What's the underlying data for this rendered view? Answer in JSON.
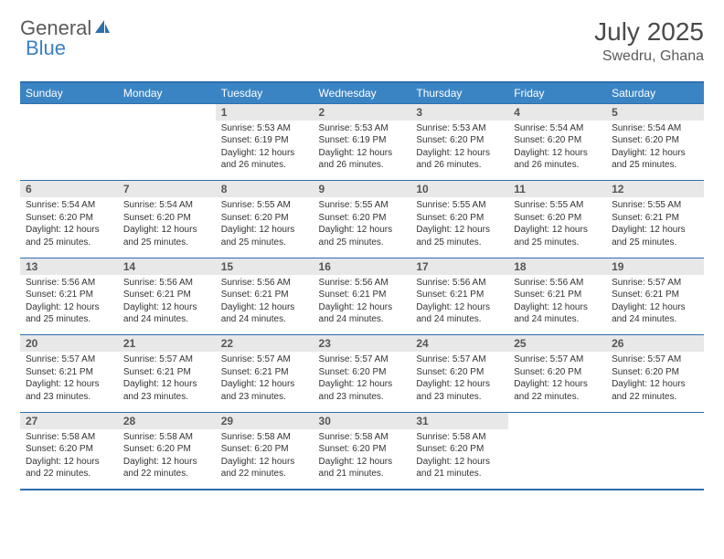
{
  "brand": {
    "word1": "General",
    "word2": "Blue"
  },
  "title": "July 2025",
  "location": "Swedru, Ghana",
  "colors": {
    "header_bg": "#3b84c4",
    "border": "#2e6fad",
    "daynum_bg": "#e8e8e8",
    "text": "#333333",
    "title_text": "#4a4a4a",
    "brand_gray": "#5a5a5a",
    "brand_blue": "#3b7fc4"
  },
  "daysOfWeek": [
    "Sunday",
    "Monday",
    "Tuesday",
    "Wednesday",
    "Thursday",
    "Friday",
    "Saturday"
  ],
  "weeks": [
    [
      {
        "n": "",
        "sr": "",
        "ss": "",
        "dl": ""
      },
      {
        "n": "",
        "sr": "",
        "ss": "",
        "dl": ""
      },
      {
        "n": "1",
        "sr": "Sunrise: 5:53 AM",
        "ss": "Sunset: 6:19 PM",
        "dl": "Daylight: 12 hours and 26 minutes."
      },
      {
        "n": "2",
        "sr": "Sunrise: 5:53 AM",
        "ss": "Sunset: 6:19 PM",
        "dl": "Daylight: 12 hours and 26 minutes."
      },
      {
        "n": "3",
        "sr": "Sunrise: 5:53 AM",
        "ss": "Sunset: 6:20 PM",
        "dl": "Daylight: 12 hours and 26 minutes."
      },
      {
        "n": "4",
        "sr": "Sunrise: 5:54 AM",
        "ss": "Sunset: 6:20 PM",
        "dl": "Daylight: 12 hours and 26 minutes."
      },
      {
        "n": "5",
        "sr": "Sunrise: 5:54 AM",
        "ss": "Sunset: 6:20 PM",
        "dl": "Daylight: 12 hours and 25 minutes."
      }
    ],
    [
      {
        "n": "6",
        "sr": "Sunrise: 5:54 AM",
        "ss": "Sunset: 6:20 PM",
        "dl": "Daylight: 12 hours and 25 minutes."
      },
      {
        "n": "7",
        "sr": "Sunrise: 5:54 AM",
        "ss": "Sunset: 6:20 PM",
        "dl": "Daylight: 12 hours and 25 minutes."
      },
      {
        "n": "8",
        "sr": "Sunrise: 5:55 AM",
        "ss": "Sunset: 6:20 PM",
        "dl": "Daylight: 12 hours and 25 minutes."
      },
      {
        "n": "9",
        "sr": "Sunrise: 5:55 AM",
        "ss": "Sunset: 6:20 PM",
        "dl": "Daylight: 12 hours and 25 minutes."
      },
      {
        "n": "10",
        "sr": "Sunrise: 5:55 AM",
        "ss": "Sunset: 6:20 PM",
        "dl": "Daylight: 12 hours and 25 minutes."
      },
      {
        "n": "11",
        "sr": "Sunrise: 5:55 AM",
        "ss": "Sunset: 6:20 PM",
        "dl": "Daylight: 12 hours and 25 minutes."
      },
      {
        "n": "12",
        "sr": "Sunrise: 5:55 AM",
        "ss": "Sunset: 6:21 PM",
        "dl": "Daylight: 12 hours and 25 minutes."
      }
    ],
    [
      {
        "n": "13",
        "sr": "Sunrise: 5:56 AM",
        "ss": "Sunset: 6:21 PM",
        "dl": "Daylight: 12 hours and 25 minutes."
      },
      {
        "n": "14",
        "sr": "Sunrise: 5:56 AM",
        "ss": "Sunset: 6:21 PM",
        "dl": "Daylight: 12 hours and 24 minutes."
      },
      {
        "n": "15",
        "sr": "Sunrise: 5:56 AM",
        "ss": "Sunset: 6:21 PM",
        "dl": "Daylight: 12 hours and 24 minutes."
      },
      {
        "n": "16",
        "sr": "Sunrise: 5:56 AM",
        "ss": "Sunset: 6:21 PM",
        "dl": "Daylight: 12 hours and 24 minutes."
      },
      {
        "n": "17",
        "sr": "Sunrise: 5:56 AM",
        "ss": "Sunset: 6:21 PM",
        "dl": "Daylight: 12 hours and 24 minutes."
      },
      {
        "n": "18",
        "sr": "Sunrise: 5:56 AM",
        "ss": "Sunset: 6:21 PM",
        "dl": "Daylight: 12 hours and 24 minutes."
      },
      {
        "n": "19",
        "sr": "Sunrise: 5:57 AM",
        "ss": "Sunset: 6:21 PM",
        "dl": "Daylight: 12 hours and 24 minutes."
      }
    ],
    [
      {
        "n": "20",
        "sr": "Sunrise: 5:57 AM",
        "ss": "Sunset: 6:21 PM",
        "dl": "Daylight: 12 hours and 23 minutes."
      },
      {
        "n": "21",
        "sr": "Sunrise: 5:57 AM",
        "ss": "Sunset: 6:21 PM",
        "dl": "Daylight: 12 hours and 23 minutes."
      },
      {
        "n": "22",
        "sr": "Sunrise: 5:57 AM",
        "ss": "Sunset: 6:21 PM",
        "dl": "Daylight: 12 hours and 23 minutes."
      },
      {
        "n": "23",
        "sr": "Sunrise: 5:57 AM",
        "ss": "Sunset: 6:20 PM",
        "dl": "Daylight: 12 hours and 23 minutes."
      },
      {
        "n": "24",
        "sr": "Sunrise: 5:57 AM",
        "ss": "Sunset: 6:20 PM",
        "dl": "Daylight: 12 hours and 23 minutes."
      },
      {
        "n": "25",
        "sr": "Sunrise: 5:57 AM",
        "ss": "Sunset: 6:20 PM",
        "dl": "Daylight: 12 hours and 22 minutes."
      },
      {
        "n": "26",
        "sr": "Sunrise: 5:57 AM",
        "ss": "Sunset: 6:20 PM",
        "dl": "Daylight: 12 hours and 22 minutes."
      }
    ],
    [
      {
        "n": "27",
        "sr": "Sunrise: 5:58 AM",
        "ss": "Sunset: 6:20 PM",
        "dl": "Daylight: 12 hours and 22 minutes."
      },
      {
        "n": "28",
        "sr": "Sunrise: 5:58 AM",
        "ss": "Sunset: 6:20 PM",
        "dl": "Daylight: 12 hours and 22 minutes."
      },
      {
        "n": "29",
        "sr": "Sunrise: 5:58 AM",
        "ss": "Sunset: 6:20 PM",
        "dl": "Daylight: 12 hours and 22 minutes."
      },
      {
        "n": "30",
        "sr": "Sunrise: 5:58 AM",
        "ss": "Sunset: 6:20 PM",
        "dl": "Daylight: 12 hours and 21 minutes."
      },
      {
        "n": "31",
        "sr": "Sunrise: 5:58 AM",
        "ss": "Sunset: 6:20 PM",
        "dl": "Daylight: 12 hours and 21 minutes."
      },
      {
        "n": "",
        "sr": "",
        "ss": "",
        "dl": ""
      },
      {
        "n": "",
        "sr": "",
        "ss": "",
        "dl": ""
      }
    ]
  ]
}
